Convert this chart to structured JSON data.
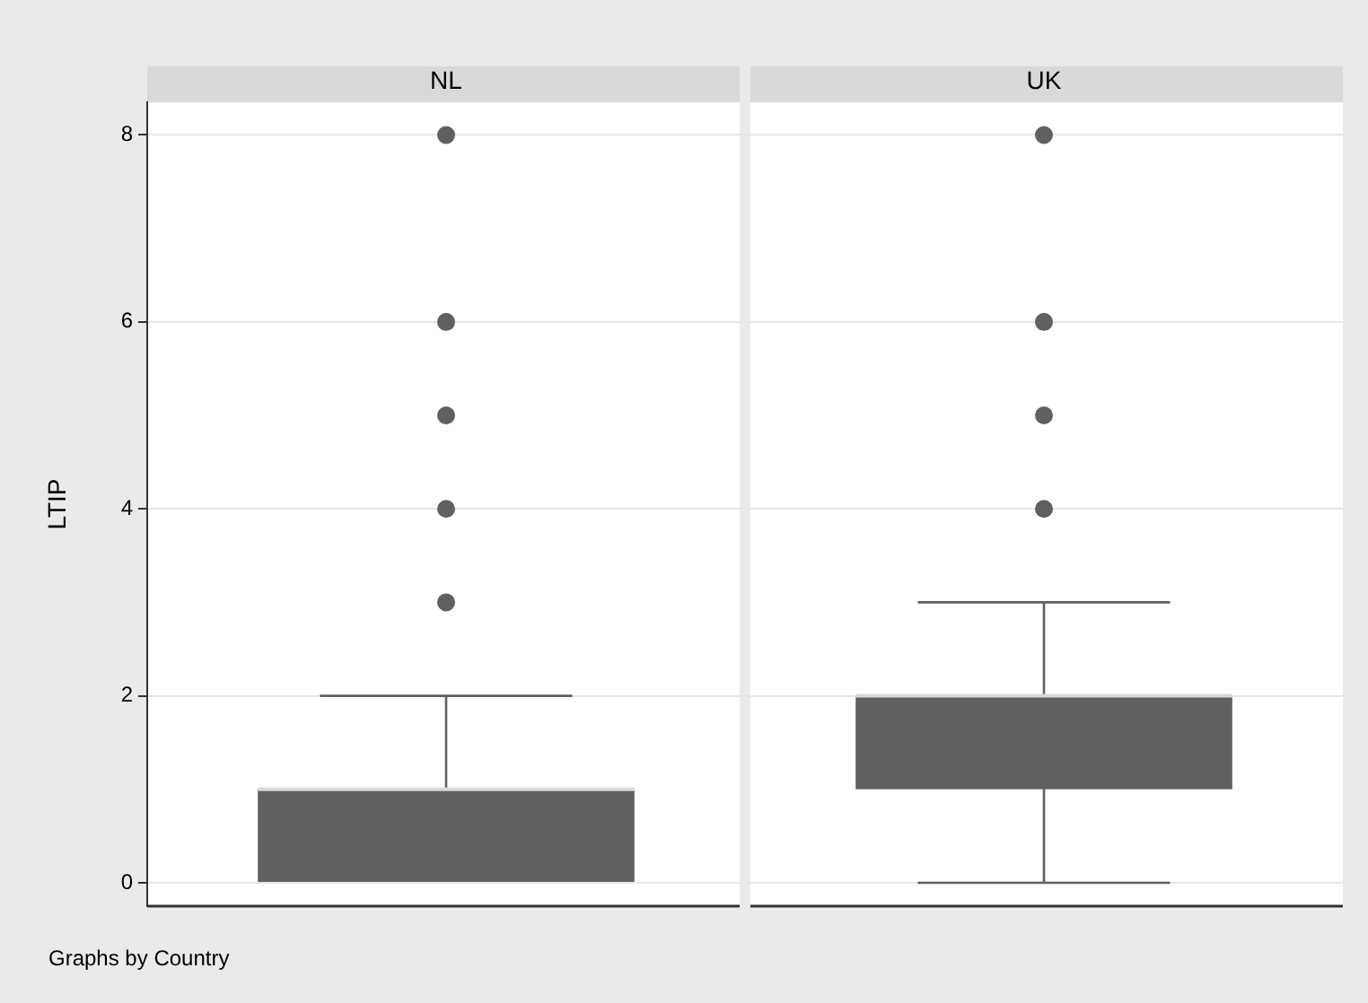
{
  "chart_data": {
    "type": "box",
    "ylabel": "LTIP",
    "categories": [
      "NL",
      "UK"
    ],
    "boxes": [
      {
        "low": 0,
        "q1": 0,
        "median": 1,
        "q3": 1,
        "high": 2,
        "outliers": [
          3,
          4,
          5,
          6,
          8
        ]
      },
      {
        "low": 0,
        "q1": 1,
        "median": 2,
        "q3": 2,
        "high": 3,
        "outliers": [
          4,
          5,
          6,
          8
        ]
      }
    ],
    "color": "#606060",
    "ylim": [
      -0.25,
      8.35
    ],
    "yticks": [
      0,
      2,
      4,
      6,
      8
    ],
    "grid": "y",
    "marker": "circle",
    "annotations": [
      "Graphs by Country"
    ]
  }
}
